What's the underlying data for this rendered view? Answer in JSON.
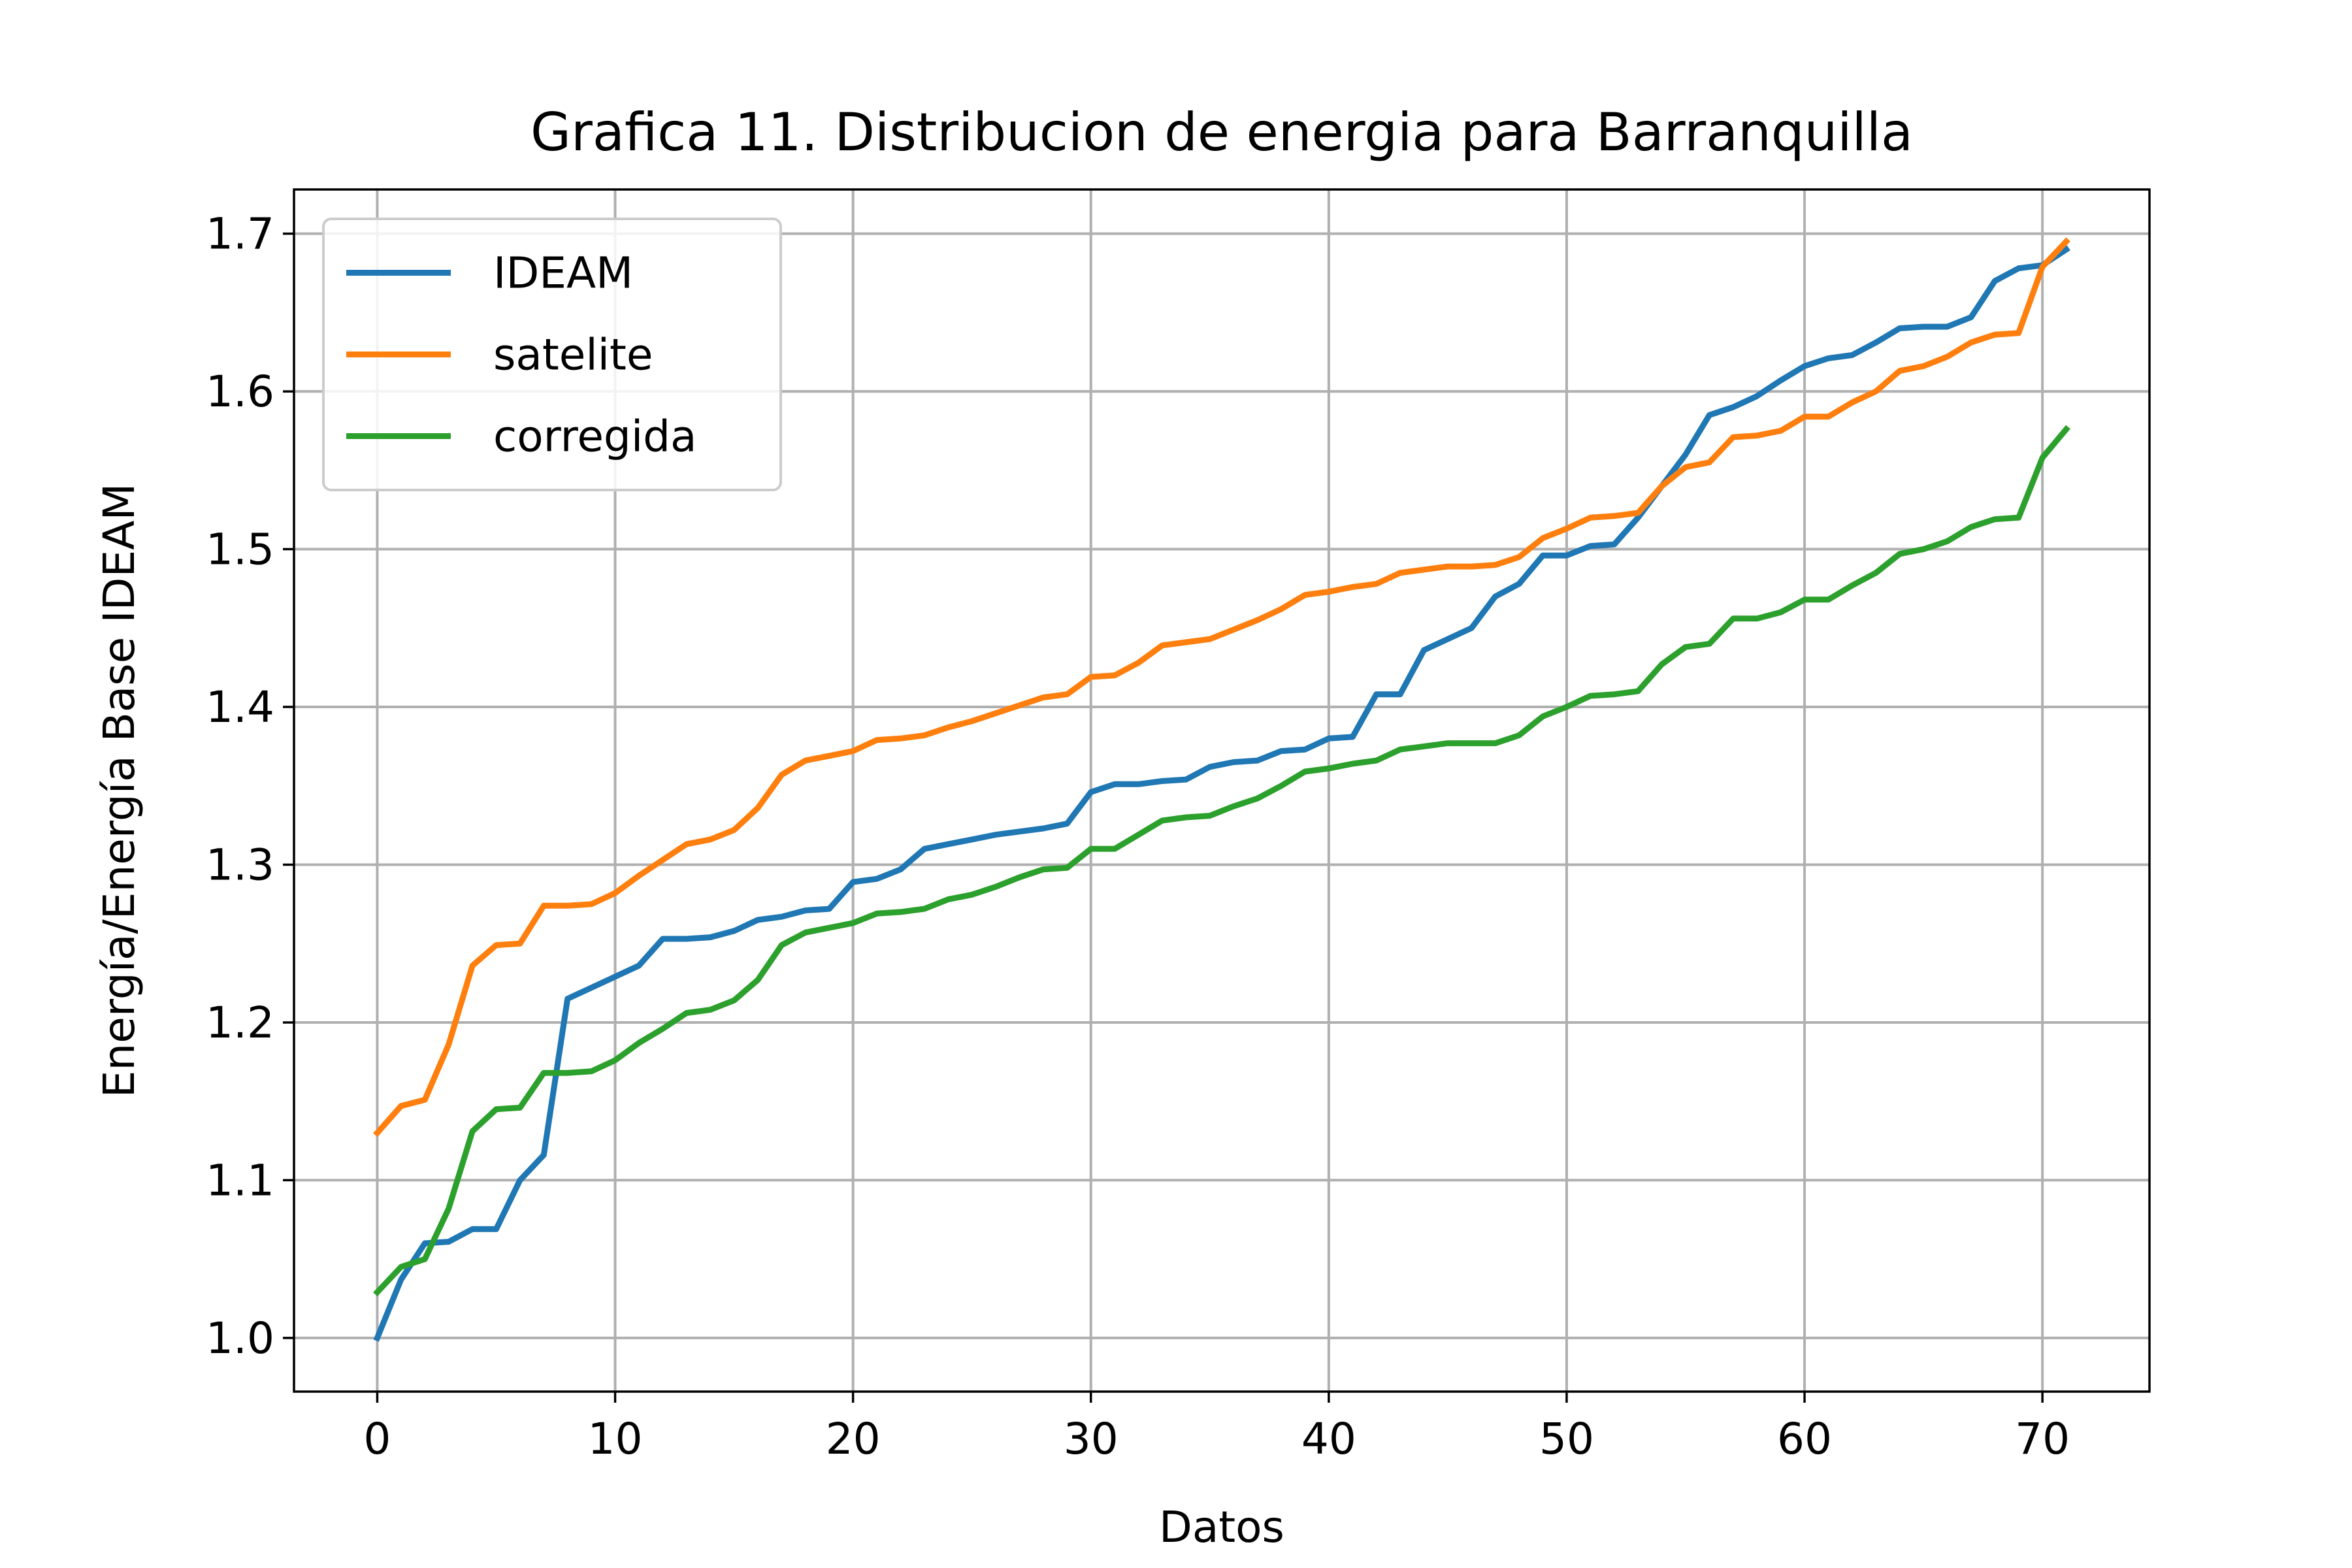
{
  "chart_data": {
    "type": "line",
    "title": "Grafica 11. Distribucion de energia para Barranquilla",
    "xlabel": "Datos",
    "ylabel": "Energía/Energía Base IDEAM",
    "xlim": [
      -3.5,
      74.5
    ],
    "ylim": [
      0.966,
      1.728
    ],
    "xticks": [
      0,
      10,
      20,
      30,
      40,
      50,
      60,
      70
    ],
    "yticks": [
      1.0,
      1.1,
      1.2,
      1.3,
      1.4,
      1.5,
      1.6,
      1.7
    ],
    "ytick_labels": [
      "1.0",
      "1.1",
      "1.2",
      "1.3",
      "1.4",
      "1.5",
      "1.6",
      "1.7"
    ],
    "grid": true,
    "legend_position": "top-left",
    "series": [
      {
        "name": "IDEAM",
        "color": "#1f77b4",
        "values": [
          1.0,
          1.037,
          1.06,
          1.061,
          1.069,
          1.069,
          1.1,
          1.116,
          1.215,
          1.222,
          1.229,
          1.236,
          1.253,
          1.253,
          1.254,
          1.258,
          1.265,
          1.267,
          1.271,
          1.272,
          1.289,
          1.291,
          1.297,
          1.31,
          1.313,
          1.316,
          1.319,
          1.321,
          1.323,
          1.326,
          1.346,
          1.351,
          1.351,
          1.353,
          1.354,
          1.362,
          1.365,
          1.366,
          1.372,
          1.373,
          1.38,
          1.381,
          1.408,
          1.408,
          1.436,
          1.443,
          1.45,
          1.47,
          1.478,
          1.496,
          1.496,
          1.502,
          1.503,
          1.52,
          1.54,
          1.56,
          1.585,
          1.59,
          1.597,
          1.607,
          1.616,
          1.621,
          1.623,
          1.631,
          1.64,
          1.641,
          1.641,
          1.647,
          1.67,
          1.678,
          1.68,
          1.69
        ]
      },
      {
        "name": "satelite",
        "color": "#ff7f0e",
        "values": [
          1.13,
          1.147,
          1.151,
          1.186,
          1.236,
          1.249,
          1.25,
          1.274,
          1.274,
          1.275,
          1.282,
          1.293,
          1.303,
          1.313,
          1.316,
          1.322,
          1.336,
          1.357,
          1.366,
          1.369,
          1.372,
          1.379,
          1.38,
          1.382,
          1.387,
          1.391,
          1.396,
          1.401,
          1.406,
          1.408,
          1.419,
          1.42,
          1.428,
          1.439,
          1.441,
          1.443,
          1.449,
          1.455,
          1.462,
          1.471,
          1.473,
          1.476,
          1.478,
          1.485,
          1.487,
          1.489,
          1.489,
          1.49,
          1.495,
          1.507,
          1.513,
          1.52,
          1.521,
          1.523,
          1.54,
          1.552,
          1.555,
          1.571,
          1.572,
          1.575,
          1.584,
          1.584,
          1.593,
          1.6,
          1.613,
          1.616,
          1.622,
          1.631,
          1.636,
          1.637,
          1.679,
          1.695
        ]
      },
      {
        "name": "corregida",
        "color": "#2ca02c",
        "values": [
          1.029,
          1.045,
          1.05,
          1.082,
          1.131,
          1.145,
          1.146,
          1.168,
          1.168,
          1.169,
          1.176,
          1.187,
          1.196,
          1.206,
          1.208,
          1.214,
          1.227,
          1.249,
          1.257,
          1.26,
          1.263,
          1.269,
          1.27,
          1.272,
          1.278,
          1.281,
          1.286,
          1.292,
          1.297,
          1.298,
          1.31,
          1.31,
          1.319,
          1.328,
          1.33,
          1.331,
          1.337,
          1.342,
          1.35,
          1.359,
          1.361,
          1.364,
          1.366,
          1.373,
          1.375,
          1.377,
          1.377,
          1.377,
          1.382,
          1.394,
          1.4,
          1.407,
          1.408,
          1.41,
          1.427,
          1.438,
          1.44,
          1.456,
          1.456,
          1.46,
          1.468,
          1.468,
          1.477,
          1.485,
          1.497,
          1.5,
          1.505,
          1.514,
          1.519,
          1.52,
          1.558,
          1.576
        ]
      }
    ]
  }
}
